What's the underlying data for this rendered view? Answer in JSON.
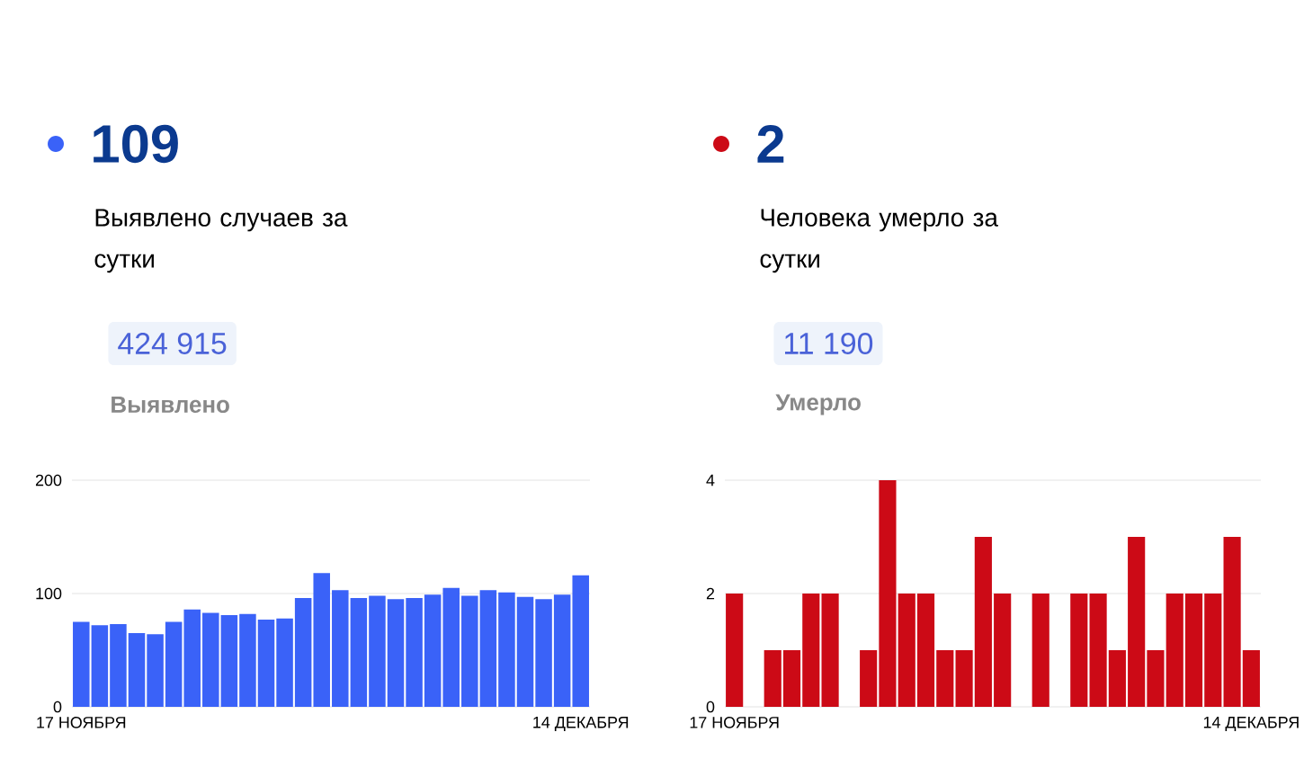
{
  "chart_data": [
    {
      "type": "bar",
      "title": "109",
      "subtitle": "Выявлено случаев за сутки",
      "annotations": [
        "424 915",
        "Выявлено"
      ],
      "categories": [
        "17 НОЯБРЯ",
        null,
        null,
        null,
        null,
        null,
        null,
        null,
        null,
        null,
        null,
        null,
        null,
        null,
        null,
        null,
        null,
        null,
        null,
        null,
        null,
        null,
        null,
        null,
        null,
        null,
        null,
        "14 ДЕКАБРЯ"
      ],
      "values": [
        75,
        72,
        73,
        65,
        64,
        75,
        86,
        83,
        81,
        82,
        77,
        78,
        96,
        118,
        103,
        96,
        98,
        95,
        96,
        99,
        105,
        98,
        103,
        101,
        97,
        95,
        99,
        116
      ],
      "color": "#3a62f8",
      "ylim": [
        0,
        200
      ],
      "yticks": [
        0,
        100,
        200
      ],
      "grid": "y"
    },
    {
      "type": "bar",
      "title": "2",
      "subtitle": "Человека умерло за сутки",
      "annotations": [
        "11 190",
        "Умерло"
      ],
      "categories": [
        "17 НОЯБРЯ",
        null,
        null,
        null,
        null,
        null,
        null,
        null,
        null,
        null,
        null,
        null,
        null,
        null,
        null,
        null,
        null,
        null,
        null,
        null,
        null,
        null,
        null,
        null,
        null,
        null,
        null,
        "14 ДЕКАБРЯ"
      ],
      "values": [
        2,
        0,
        1,
        1,
        2,
        2,
        0,
        1,
        4,
        2,
        2,
        1,
        1,
        3,
        2,
        0,
        2,
        0,
        2,
        2,
        1,
        3,
        1,
        2,
        2,
        2,
        3,
        1
      ],
      "color": "#cc0a16",
      "ylim": [
        0,
        4
      ],
      "yticks": [
        0,
        2,
        4
      ],
      "grid": "y"
    }
  ]
}
